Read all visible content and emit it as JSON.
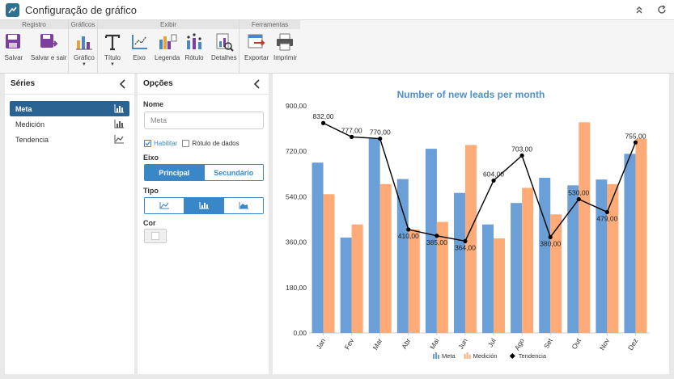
{
  "app": {
    "title": "Configuração de gráfico"
  },
  "ribbon": {
    "groups": [
      {
        "label": "Registro"
      },
      {
        "label": "Gráficos"
      },
      {
        "label": "Exibir"
      },
      {
        "label": "Ferramentas"
      }
    ],
    "buttons": {
      "save": "Salvar",
      "save_exit": "Salvar e sair",
      "chart": "Gráfico",
      "title": "Título",
      "axis": "Eixo",
      "legend": "Legenda",
      "label": "Rótulo",
      "details": "Detalhes",
      "export": "Exportar",
      "print": "Imprimir"
    },
    "icons": {
      "save": "floppy-disk-icon",
      "save_exit": "floppy-exit-icon",
      "chart": "bar-chart-icon",
      "title": "text-t-icon",
      "axis": "axis-icon",
      "legend": "legend-icon",
      "label": "data-label-icon",
      "details": "details-icon",
      "export": "export-icon",
      "print": "printer-icon"
    }
  },
  "series_panel": {
    "title": "Séries",
    "items": [
      {
        "label": "Meta",
        "icon": "bar-icon",
        "selected": true
      },
      {
        "label": "Medición",
        "icon": "bar-icon",
        "selected": false
      },
      {
        "label": "Tendencia",
        "icon": "line-icon",
        "selected": false
      }
    ]
  },
  "options_panel": {
    "title": "Opções",
    "name_label": "Nome",
    "name_value": "Meta",
    "enable_label": "Habilitar",
    "enable_checked": true,
    "data_label_label": "Rótulo de dados",
    "data_label_checked": false,
    "axis_label": "Eixo",
    "axis_options": [
      "Principal",
      "Secundário"
    ],
    "axis_selected": "Principal",
    "type_label": "Tipo",
    "type_options": [
      "line-icon",
      "bar-icon",
      "area-icon"
    ],
    "type_selected": "bar-icon",
    "color_label": "Cor"
  },
  "colors": {
    "meta": "#6a9fd8",
    "medicion": "#ffab78",
    "tendencia": "#000000",
    "accent": "#3a87c8",
    "title": "#4f8fd0",
    "selected_item": "#2a6391"
  },
  "chart_data": {
    "type": "bar",
    "title": "Number of new leads per month",
    "categories": [
      "Jan",
      "Fev",
      "Mar",
      "Abr",
      "Mai",
      "Jun",
      "Jul",
      "Ago",
      "Set",
      "Out",
      "Nov",
      "Dez"
    ],
    "series": [
      {
        "name": "Meta",
        "type": "bar",
        "values": [
          675,
          378,
          770,
          610,
          730,
          555,
          430,
          515,
          615,
          585,
          608,
          710
        ]
      },
      {
        "name": "Medición",
        "type": "bar",
        "values": [
          550,
          430,
          590,
          410,
          440,
          745,
          375,
          575,
          470,
          835,
          590,
          770
        ]
      },
      {
        "name": "Tendencia",
        "type": "line",
        "values": [
          832,
          777,
          770,
          410,
          385,
          364,
          604,
          703,
          380,
          530,
          479,
          755
        ],
        "labels": [
          "832,00",
          "777,00",
          "770,00",
          "410,00",
          "385,00",
          "364,00",
          "604,00",
          "703,00",
          "380,00",
          "530,00",
          "479,00",
          "755,00"
        ]
      }
    ],
    "ylim": [
      0,
      900
    ],
    "yticks": [
      "0,00",
      "180,00",
      "360,00",
      "540,00",
      "720,00",
      "900,00"
    ],
    "grid": false,
    "legend_position": "bottom"
  }
}
